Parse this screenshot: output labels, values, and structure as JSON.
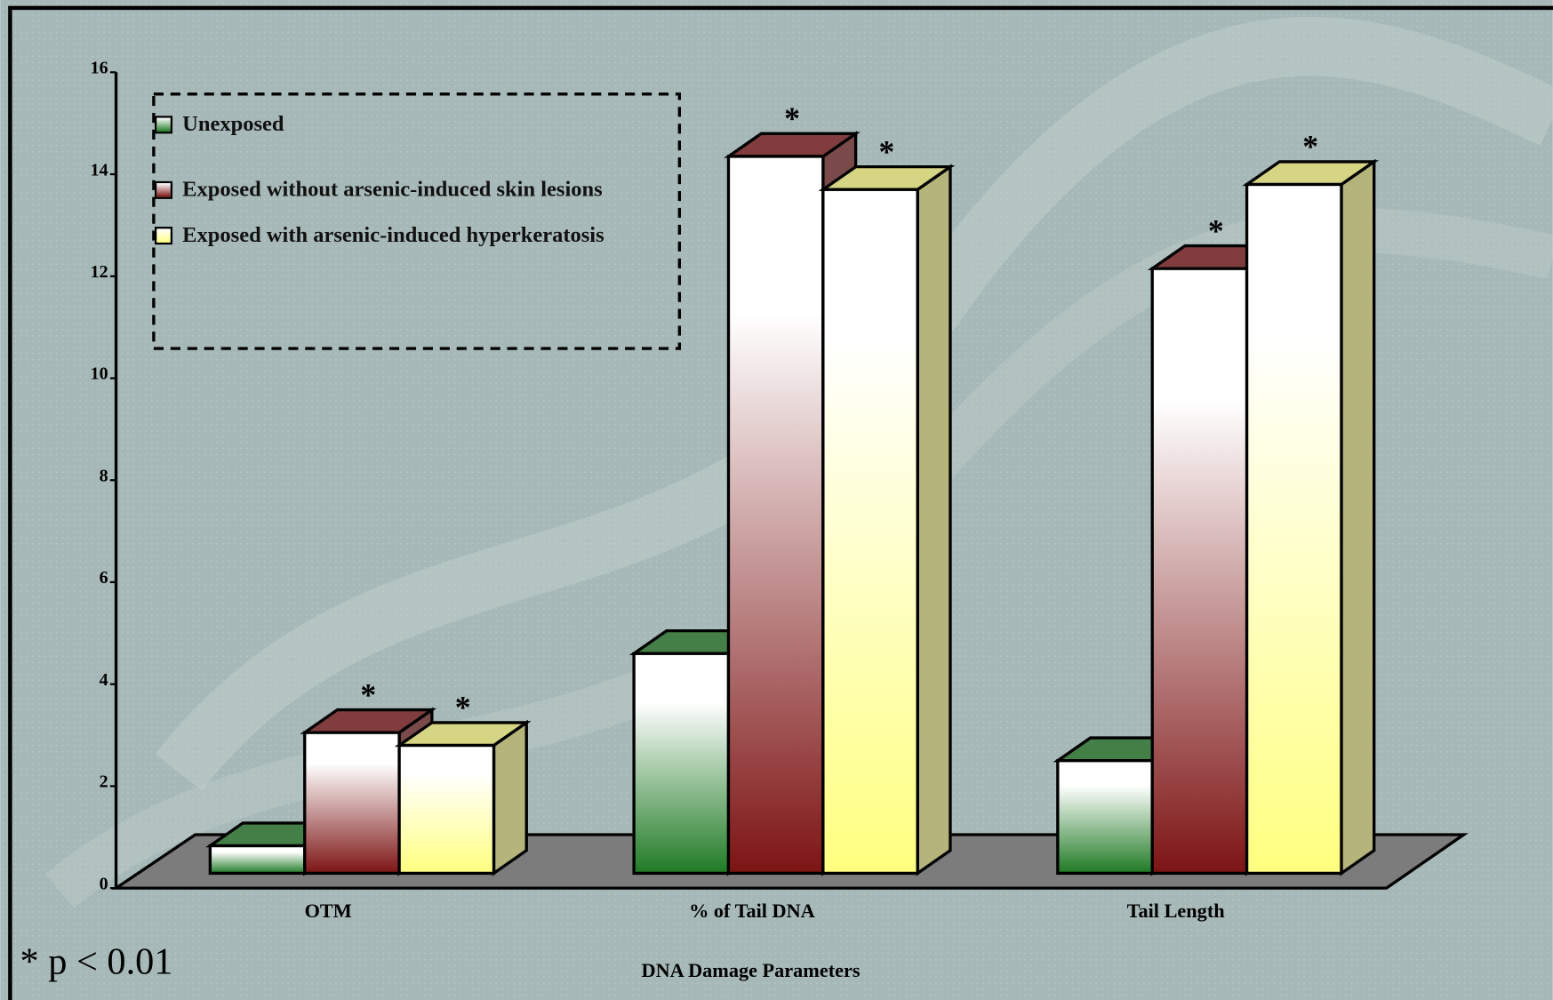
{
  "chart_data": {
    "type": "bar3d",
    "x_label": "DNA Damage Parameters",
    "footnote": "* p < 0.01",
    "categories": [
      "OTM",
      "% of Tail DNA",
      "Tail Length"
    ],
    "series": [
      {
        "name": "Unexposed",
        "color": "#1f7a24",
        "values": [
          0.83,
          4.6,
          2.5
        ]
      },
      {
        "name": "Exposed without arsenic-induced skin lesions",
        "color": "#7d1414",
        "annotation": "*",
        "values": [
          3.05,
          14.35,
          12.15
        ]
      },
      {
        "name": "Exposed with arsenic-induced hyperkeratosis",
        "color": "#ffff80",
        "annotation": "*",
        "values": [
          2.8,
          13.7,
          13.8
        ]
      }
    ],
    "ylim": [
      0,
      16
    ],
    "yticks": [
      0,
      2,
      4,
      6,
      8,
      10,
      12,
      14,
      16
    ],
    "legend": "top-left"
  }
}
